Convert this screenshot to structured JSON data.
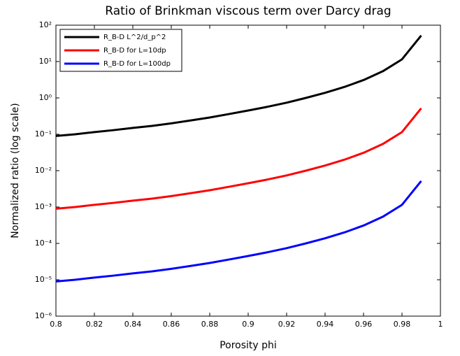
{
  "chart_data": {
    "type": "line",
    "title": "Ratio of Brinkman viscous term over Darcy drag",
    "xlabel": "Porosity phi",
    "ylabel": "Normalized ratio (log scale)",
    "x": [
      0.8,
      0.81,
      0.82,
      0.83,
      0.84,
      0.85,
      0.86,
      0.87,
      0.88,
      0.89,
      0.9,
      0.91,
      0.92,
      0.93,
      0.94,
      0.95,
      0.96,
      0.97,
      0.98,
      0.99
    ],
    "series": [
      {
        "name": "R_B-D L^2/d_p^2",
        "color": "#000000",
        "values": [
          0.09,
          0.1,
          0.115,
          0.13,
          0.15,
          0.17,
          0.2,
          0.24,
          0.29,
          0.36,
          0.45,
          0.57,
          0.74,
          1.0,
          1.38,
          2.0,
          3.1,
          5.4,
          11.5,
          52
        ]
      },
      {
        "name": "R_B-D  for L=10dp",
        "color": "#ff0000",
        "values": [
          0.0009,
          0.001,
          0.00115,
          0.0013,
          0.0015,
          0.0017,
          0.002,
          0.0024,
          0.0029,
          0.0036,
          0.0045,
          0.0057,
          0.0074,
          0.01,
          0.0138,
          0.02,
          0.031,
          0.054,
          0.115,
          0.52
        ]
      },
      {
        "name": "R_B-D  for L=100dp",
        "color": "#0000ff",
        "values": [
          9e-06,
          1e-05,
          1.15e-05,
          1.3e-05,
          1.5e-05,
          1.7e-05,
          2e-05,
          2.4e-05,
          2.9e-05,
          3.6e-05,
          4.5e-05,
          5.7e-05,
          7.4e-05,
          0.0001,
          0.000138,
          0.0002,
          0.00031,
          0.00054,
          0.00115,
          0.0052
        ]
      }
    ],
    "xlim": [
      0.8,
      1
    ],
    "xticks": [
      0.8,
      0.82,
      0.84,
      0.86,
      0.88,
      0.9,
      0.92,
      0.94,
      0.96,
      0.98,
      1
    ],
    "ylim": [
      1e-06,
      100
    ],
    "ylog": true,
    "yticks": [
      {
        "value": 1e-06,
        "label": "10⁻⁶"
      },
      {
        "value": 1e-05,
        "label": "10⁻⁵"
      },
      {
        "value": 0.0001,
        "label": "10⁻⁴"
      },
      {
        "value": 0.001,
        "label": "10⁻³"
      },
      {
        "value": 0.01,
        "label": "10⁻²"
      },
      {
        "value": 0.1,
        "label": "10⁻¹"
      },
      {
        "value": 1,
        "label": "10⁰"
      },
      {
        "value": 10,
        "label": "10¹"
      },
      {
        "value": 100,
        "label": "10²"
      }
    ],
    "grid": false,
    "legend": "upper left"
  }
}
